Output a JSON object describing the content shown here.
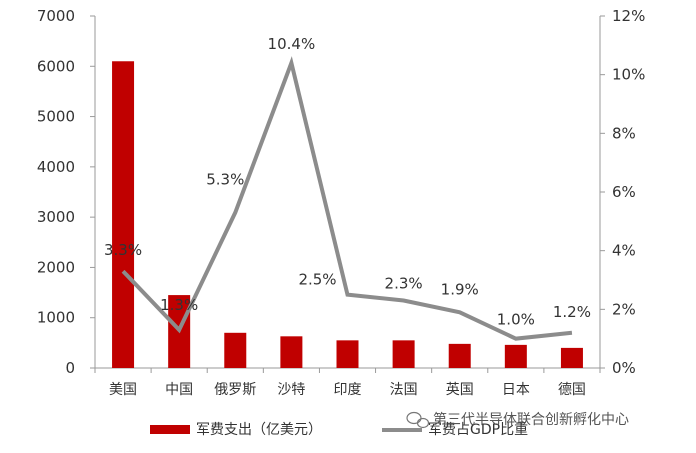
{
  "chart_data": {
    "type": "bar",
    "categories": [
      "美国",
      "中国",
      "俄罗斯",
      "沙特",
      "印度",
      "法国",
      "英国",
      "日本",
      "德国"
    ],
    "series": [
      {
        "name": "军费支出（亿美元）",
        "type": "bar",
        "axis": "left",
        "color": "#C00000",
        "values": [
          6100,
          1450,
          700,
          630,
          550,
          550,
          480,
          460,
          400
        ]
      },
      {
        "name": "军费占GDP比重",
        "type": "line",
        "axis": "right",
        "color": "#8C8C8C",
        "values": [
          3.3,
          1.3,
          5.3,
          10.4,
          2.5,
          2.3,
          1.9,
          1.0,
          1.2
        ],
        "labels": [
          "3.3%",
          "1.3%",
          "5.3%",
          "10.4%",
          "2.5%",
          "2.3%",
          "1.9%",
          "1.0%",
          "1.2%"
        ]
      }
    ],
    "ylim_left": [
      0,
      7000
    ],
    "yticks_left": [
      0,
      1000,
      2000,
      3000,
      4000,
      5000,
      6000,
      7000
    ],
    "ylim_right": [
      0,
      12
    ],
    "yticks_right": [
      "0%",
      "2%",
      "4%",
      "6%",
      "8%",
      "10%",
      "12%"
    ],
    "legend_position": "bottom",
    "grid": false
  },
  "watermark": "第三代半导体联合创新孵化中心"
}
